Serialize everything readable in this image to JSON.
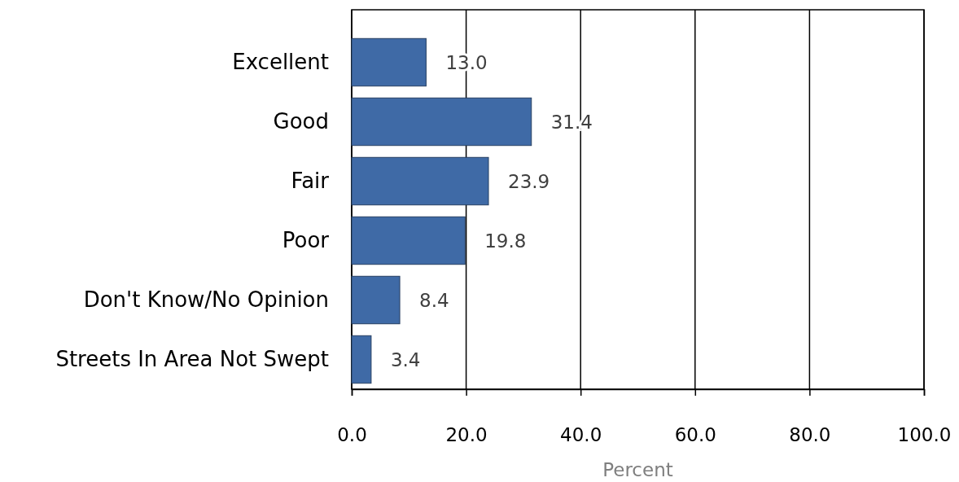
{
  "chart_data": {
    "type": "bar",
    "orientation": "horizontal",
    "xlabel": "Percent",
    "categories": [
      "Excellent",
      "Good",
      "Fair",
      "Poor",
      "Don't Know/No Opinion",
      "Streets In Area Not Swept"
    ],
    "values": [
      13.0,
      31.4,
      23.9,
      19.8,
      8.4,
      3.4
    ],
    "value_labels": [
      "13.0",
      "31.4",
      "23.9",
      "19.8",
      "8.4",
      "3.4"
    ],
    "color": "#3f6aa6",
    "xlim": [
      0,
      100
    ],
    "xticks": [
      {
        "value": 0,
        "label": "0.0"
      },
      {
        "value": 20,
        "label": "20.0"
      },
      {
        "value": 40,
        "label": "40.0"
      },
      {
        "value": 60,
        "label": "60.0"
      },
      {
        "value": 80,
        "label": "80.0"
      },
      {
        "value": 100,
        "label": "100.0"
      }
    ],
    "grid": "x"
  }
}
